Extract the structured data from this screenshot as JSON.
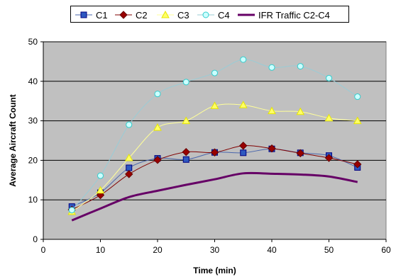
{
  "chart_data": {
    "type": "line",
    "title": "",
    "xlabel": "Time (min)",
    "ylabel": "Average Aircraft Count",
    "xlim": [
      0,
      60
    ],
    "ylim": [
      0,
      50
    ],
    "x_ticks": [
      "0",
      "10",
      "20",
      "30",
      "40",
      "50",
      "60"
    ],
    "y_ticks": [
      "0",
      "10",
      "20",
      "30",
      "40",
      "50"
    ],
    "grid": "horizontal",
    "plot_background": "#c0c0c0",
    "legend_position": "top",
    "x": [
      5,
      10,
      15,
      20,
      25,
      30,
      35,
      40,
      45,
      50,
      55
    ],
    "series": [
      {
        "name": "C1",
        "color": "#4a66ac",
        "marker": "square",
        "marker_fill": "#2e58c0",
        "values": [
          8.3,
          11.8,
          18.1,
          20.5,
          20.2,
          22.0,
          21.9,
          22.9,
          21.9,
          21.2,
          18.2
        ]
      },
      {
        "name": "C2",
        "color": "#800000",
        "marker": "diamond",
        "marker_fill": "#990000",
        "values": [
          7.5,
          11.2,
          16.5,
          20.1,
          22.1,
          22.0,
          23.7,
          23.0,
          21.8,
          20.6,
          19.0
        ]
      },
      {
        "name": "C3",
        "color": "#ffff99",
        "marker": "triangle",
        "marker_fill": "#ffff66",
        "values": [
          7.0,
          12.4,
          20.6,
          28.3,
          30.0,
          33.8,
          34.0,
          32.5,
          32.3,
          30.7,
          30.0
        ]
      },
      {
        "name": "C4",
        "color": "#99ccd6",
        "marker": "circle",
        "marker_fill": "#ccffff",
        "values": [
          7.4,
          16.1,
          29.0,
          36.8,
          39.8,
          42.1,
          45.5,
          43.5,
          43.8,
          40.8,
          36.1
        ]
      },
      {
        "name": "IFR Traffic C2-C4",
        "color": "#660066",
        "marker": "none",
        "line_width": 3,
        "values": [
          4.8,
          7.8,
          10.7,
          12.3,
          13.8,
          15.2,
          16.7,
          16.6,
          16.4,
          15.9,
          14.5
        ]
      }
    ]
  }
}
